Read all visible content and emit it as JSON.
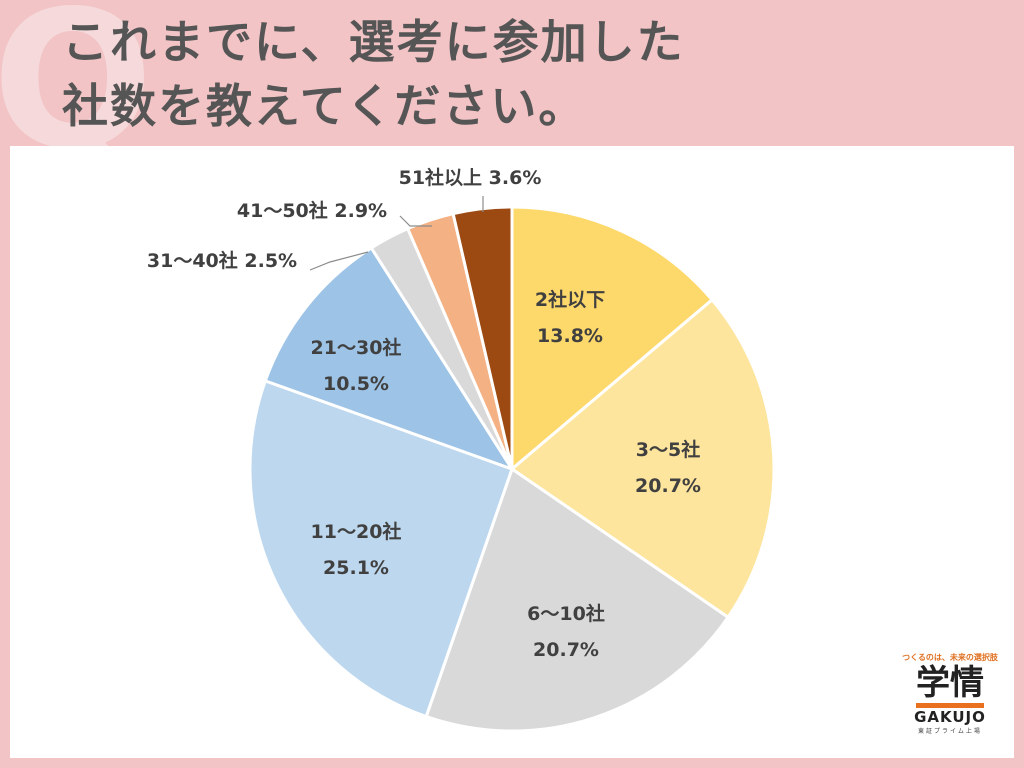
{
  "header": {
    "q_mark": "Q",
    "title_line1": "これまでに、選考に参加した",
    "title_line2": "社数を教えてください。"
  },
  "chart_data": {
    "type": "pie",
    "start": "12 o'clock",
    "direction": "clockwise",
    "slices": [
      {
        "label": "2社以下",
        "value": 13.8,
        "value_label": "13.8%",
        "color": "#fdd86a"
      },
      {
        "label": "3～5社",
        "value": 20.7,
        "value_label": "20.7%",
        "color": "#fde59d"
      },
      {
        "label": "6～10社",
        "value": 20.7,
        "value_label": "20.7%",
        "color": "#d9d9d9"
      },
      {
        "label": "11～20社",
        "value": 25.1,
        "value_label": "25.1%",
        "color": "#bdd7ee"
      },
      {
        "label": "21～30社",
        "value": 10.5,
        "value_label": "10.5%",
        "color": "#9dc3e6"
      },
      {
        "label": "31～40社",
        "value": 2.5,
        "value_label": "2.5%",
        "color": "#d9d9d9"
      },
      {
        "label": "41～50社",
        "value": 2.9,
        "value_label": "2.9%",
        "color": "#f4b183"
      },
      {
        "label": "51社以上",
        "value": 3.6,
        "value_label": "3.6%",
        "color": "#9c4a12"
      }
    ]
  },
  "brand": {
    "tagline": "つくるのは、未来の選択肢",
    "name_kanji": "学情",
    "name_latin": "GAKUJO",
    "listing": "東証プライム上場"
  }
}
